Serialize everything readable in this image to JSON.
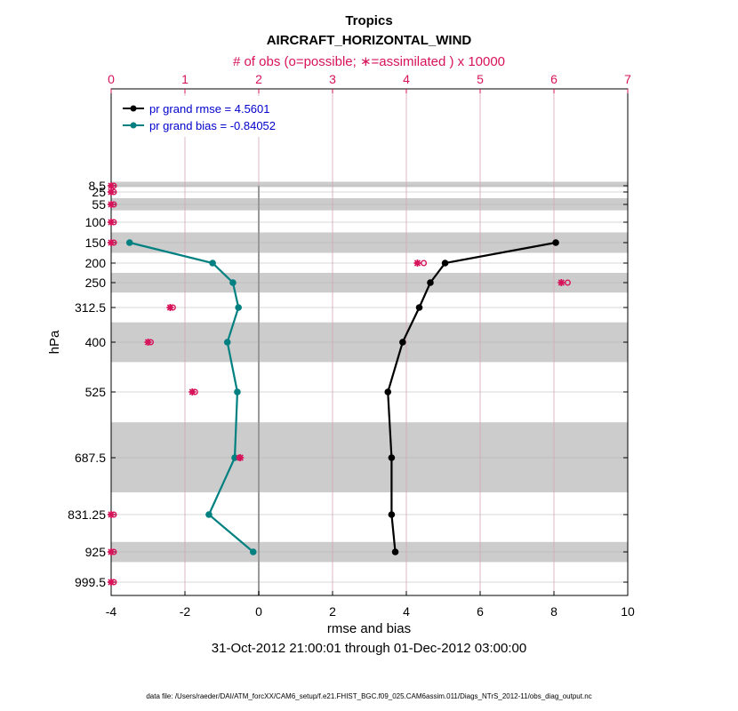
{
  "colors": {
    "rmse": "#000000",
    "bias": "#008080",
    "obs": "#d6135a",
    "legend_text": "#0000cc",
    "band": "#cccccc"
  },
  "chart_data": {
    "type": "line",
    "title": "Tropics",
    "subtitle": "AIRCRAFT_HORIZONTAL_WIND",
    "top_axis_label": "# of obs (o=possible; ∗=assimilated ) x 10000",
    "xlabel": "rmse and bias",
    "date_range": "31-Oct-2012 21:00:01 through 01-Dec-2012 03:00:00",
    "ylabel": "hPa",
    "footer": "data file: /Users/raeder/DAI/ATM_forcXX/CAM6_setup/f.e21.FHIST_BGC.f09_025.CAM6assim.011/Diags_NTrS_2012-11/obs_diag_output.nc",
    "xlim": [
      -4,
      10
    ],
    "x_ticks": [
      -4,
      -2,
      0,
      2,
      4,
      6,
      8,
      10
    ],
    "top_xlim": [
      0,
      7
    ],
    "top_ticks": [
      0,
      1,
      2,
      3,
      4,
      5,
      6,
      7
    ],
    "y_ticks": [
      8.5,
      25,
      55,
      100,
      150,
      200,
      250,
      312.5,
      400,
      525,
      687.5,
      831.25,
      925,
      999.5
    ],
    "y_tick_labels": [
      "8.5",
      "25",
      "55",
      "100",
      "150",
      "200",
      "250",
      "312.5",
      "400",
      "525",
      "687.5",
      "831.25",
      "925",
      "999.5"
    ],
    "bands": [
      [
        5,
        12
      ],
      [
        40,
        70
      ],
      [
        125,
        175
      ],
      [
        225,
        275
      ],
      [
        350,
        450
      ],
      [
        600,
        775
      ],
      [
        900,
        950
      ]
    ],
    "series": [
      {
        "name": "pr grand rmse = 4.5601",
        "levels": [
          150,
          200,
          250,
          312.5,
          400,
          525,
          687.5,
          831.25,
          925
        ],
        "values": [
          8.05,
          5.05,
          4.65,
          4.35,
          3.9,
          3.5,
          3.6,
          3.6,
          3.7
        ]
      },
      {
        "name": "pr grand bias = -0.84052",
        "levels": [
          150,
          200,
          250,
          312.5,
          400,
          525,
          687.5,
          831.25,
          925
        ],
        "values": [
          -3.5,
          -1.25,
          -0.7,
          -0.55,
          -0.85,
          -0.58,
          -0.65,
          -1.35,
          -0.15
        ]
      }
    ],
    "obs_possible": {
      "levels": [
        8.5,
        25,
        55,
        100,
        150,
        200,
        250,
        312.5,
        400,
        525,
        687.5,
        831.25,
        925,
        999.5
      ],
      "values": [
        0,
        0,
        0,
        0,
        0,
        4.2,
        6.15,
        0.8,
        0.5,
        1.1,
        1.7,
        0,
        0,
        0
      ]
    },
    "obs_assimilated": {
      "levels": [
        8.5,
        25,
        55,
        100,
        150,
        200,
        250,
        312.5,
        400,
        525,
        687.5,
        831.25,
        925,
        999.5
      ],
      "values": [
        0,
        0,
        0,
        0,
        0,
        4.15,
        6.1,
        0.8,
        0.5,
        1.1,
        1.75,
        0,
        0,
        0
      ]
    }
  }
}
